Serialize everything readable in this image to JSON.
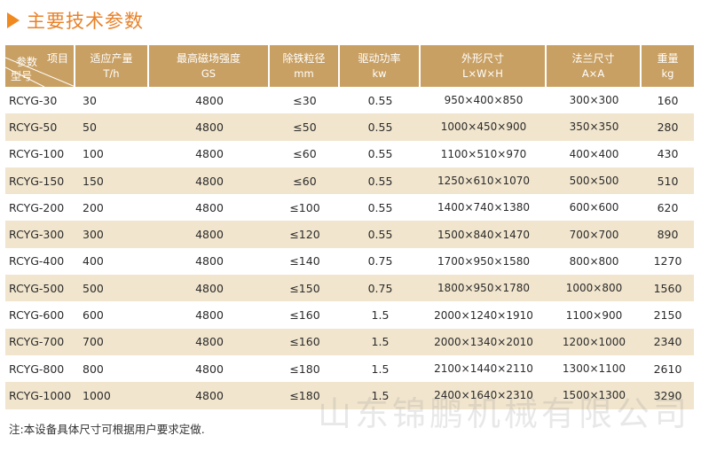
{
  "title": "主要技术参数",
  "header": {
    "corner_top": "项目",
    "corner_mid": "参数",
    "corner_bottom": "型号",
    "columns": [
      {
        "label": "适应产量",
        "unit": "T/h"
      },
      {
        "label": "最高磁场强度",
        "unit": "GS"
      },
      {
        "label": "除铁粒径",
        "unit": "mm"
      },
      {
        "label": "驱动功率",
        "unit": "kw"
      },
      {
        "label": "外形尺寸",
        "unit": "L×W×H"
      },
      {
        "label": "法兰尺寸",
        "unit": "A×A"
      },
      {
        "label": "重量",
        "unit": "kg"
      }
    ]
  },
  "rows": [
    {
      "model": "RCYG-30",
      "capacity": "30",
      "field": "4800",
      "particle": "≤30",
      "power": "0.55",
      "dims": "950×400×850",
      "flange": "300×300",
      "weight": "160"
    },
    {
      "model": "RCYG-50",
      "capacity": "50",
      "field": "4800",
      "particle": "≤50",
      "power": "0.55",
      "dims": "1000×450×900",
      "flange": "350×350",
      "weight": "280"
    },
    {
      "model": "RCYG-100",
      "capacity": "100",
      "field": "4800",
      "particle": "≤60",
      "power": "0.55",
      "dims": "1100×510×970",
      "flange": "400×400",
      "weight": "430"
    },
    {
      "model": "RCYG-150",
      "capacity": "150",
      "field": "4800",
      "particle": "≤60",
      "power": "0.55",
      "dims": "1250×610×1070",
      "flange": "500×500",
      "weight": "510"
    },
    {
      "model": "RCYG-200",
      "capacity": "200",
      "field": "4800",
      "particle": "≤100",
      "power": "0.55",
      "dims": "1400×740×1380",
      "flange": "600×600",
      "weight": "620"
    },
    {
      "model": "RCYG-300",
      "capacity": "300",
      "field": "4800",
      "particle": "≤120",
      "power": "0.55",
      "dims": "1500×840×1470",
      "flange": "700×700",
      "weight": "890"
    },
    {
      "model": "RCYG-400",
      "capacity": "400",
      "field": "4800",
      "particle": "≤140",
      "power": "0.75",
      "dims": "1700×950×1580",
      "flange": "800×800",
      "weight": "1270"
    },
    {
      "model": "RCYG-500",
      "capacity": "500",
      "field": "4800",
      "particle": "≤150",
      "power": "0.75",
      "dims": "1800×950×1780",
      "flange": "1000×800",
      "weight": "1560"
    },
    {
      "model": "RCYG-600",
      "capacity": "600",
      "field": "4800",
      "particle": "≤160",
      "power": "1.5",
      "dims": "2000×1240×1910",
      "flange": "1100×900",
      "weight": "2150"
    },
    {
      "model": "RCYG-700",
      "capacity": "700",
      "field": "4800",
      "particle": "≤160",
      "power": "1.5",
      "dims": "2000×1340×2010",
      "flange": "1200×1000",
      "weight": "2340"
    },
    {
      "model": "RCYG-800",
      "capacity": "800",
      "field": "4800",
      "particle": "≤180",
      "power": "1.5",
      "dims": "2100×1440×2110",
      "flange": "1300×1100",
      "weight": "2610"
    },
    {
      "model": "RCYG-1000",
      "capacity": "1000",
      "field": "4800",
      "particle": "≤180",
      "power": "1.5",
      "dims": "2400×1640×2310",
      "flange": "1500×1300",
      "weight": "3290"
    }
  ],
  "note": "注:本设备具体尺寸可根据用户要求定做.",
  "watermark": "山东锦鹏机械有限公司",
  "colors": {
    "accent": "#f0891f",
    "header_bg": "#c9a063",
    "alt_row_bg": "#f1e5cd"
  }
}
